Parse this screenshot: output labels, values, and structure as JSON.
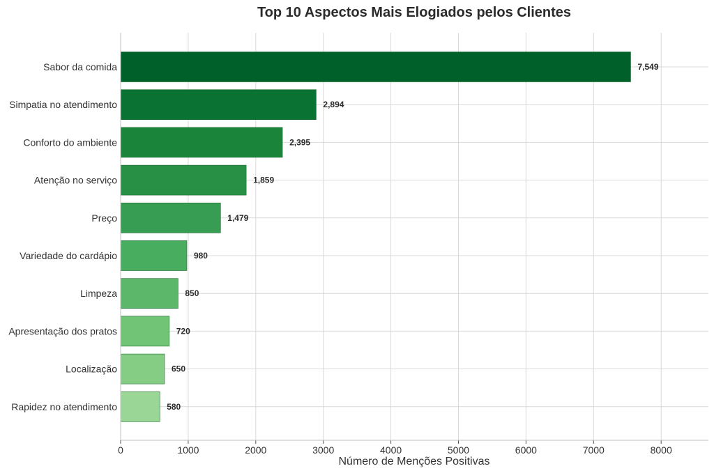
{
  "chart_data": {
    "type": "bar",
    "orientation": "horizontal",
    "title": "Top 10 Aspectos Mais Elogiados pelos Clientes",
    "xlabel": "Número de Menções Positivas",
    "ylabel": "",
    "categories": [
      "Sabor da comida",
      "Simpatia no atendimento",
      "Conforto do ambiente",
      "Atenção no serviço",
      "Preço",
      "Variedade do cardápio",
      "Limpeza",
      "Apresentação dos pratos",
      "Localização",
      "Rapidez no atendimento"
    ],
    "values": [
      7549,
      2894,
      2395,
      1859,
      1479,
      980,
      850,
      720,
      650,
      580
    ],
    "value_labels": [
      "7,549",
      "2,894",
      "2,395",
      "1,859",
      "1,479",
      "980",
      "850",
      "720",
      "650",
      "580"
    ],
    "xticks": [
      "0",
      "1000",
      "2000",
      "3000",
      "4000",
      "5000",
      "6000",
      "7000",
      "8000"
    ],
    "xlim": [
      0,
      8700
    ],
    "grid": true,
    "colors": [
      "#00602a",
      "#0a7334",
      "#1a843b",
      "#289044",
      "#369d52",
      "#48ad5f",
      "#5db76a",
      "#71c476",
      "#85cd85",
      "#9ad796"
    ],
    "grid_color": "#d9d9d9",
    "axis_color": "#bfbfbf"
  }
}
